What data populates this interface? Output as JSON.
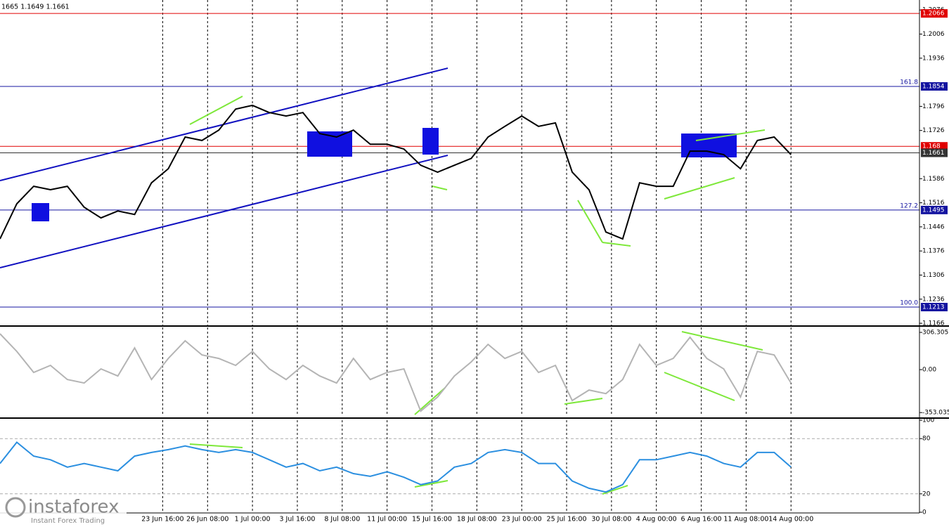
{
  "chart_data": {
    "type": "line",
    "header": "1665 1.1649 1.1661",
    "x": [
      0,
      6,
      12,
      18,
      24,
      30,
      36,
      42,
      48,
      54,
      60,
      66,
      72,
      78,
      84,
      90,
      96,
      102,
      108,
      114,
      120,
      126,
      132,
      138,
      144,
      150,
      156,
      162,
      168,
      174,
      180,
      186,
      192,
      198,
      204,
      210,
      216,
      222,
      228,
      234,
      240,
      246,
      252,
      258,
      264,
      270,
      276,
      282
    ],
    "xlim": [
      0,
      327.8
    ],
    "xticks": [
      {
        "value": 58,
        "label": "23 Jun 16:00"
      },
      {
        "value": 74,
        "label": "26 Jun 08:00"
      },
      {
        "value": 90,
        "label": "1 Jul 00:00"
      },
      {
        "value": 106,
        "label": "3 Jul 16:00"
      },
      {
        "value": 122,
        "label": "8 Jul 08:00"
      },
      {
        "value": 138,
        "label": "11 Jul 00:00"
      },
      {
        "value": 154,
        "label": "15 Jul 16:00"
      },
      {
        "value": 170,
        "label": "18 Jul 08:00"
      },
      {
        "value": 186,
        "label": "23 Jul 00:00"
      },
      {
        "value": 202,
        "label": "25 Jul 16:00"
      },
      {
        "value": 218,
        "label": "30 Jul 08:00"
      },
      {
        "value": 234,
        "label": "4 Aug 00:00"
      },
      {
        "value": 250,
        "label": "6 Aug 16:00"
      },
      {
        "value": 266,
        "label": "11 Aug 08:00"
      },
      {
        "value": 282,
        "label": "14 Aug 00:00"
      }
    ],
    "panels": [
      {
        "ylim": [
          1.116,
          1.2105
        ],
        "yticks": [
          1.2076,
          1.2006,
          1.1936,
          1.1796,
          1.1726,
          1.1586,
          1.1516,
          1.1446,
          1.1376,
          1.1306,
          1.1236,
          1.1166
        ],
        "levels": [
          {
            "value": 1.2066,
            "color": "#e00000"
          },
          {
            "value": 1.1854,
            "color": "#1414a0",
            "fib": "161.8"
          },
          {
            "value": 1.168,
            "color": "#e00000"
          },
          {
            "value": 1.1661,
            "color": "#333333"
          },
          {
            "value": 1.1495,
            "color": "#1414a0",
            "fib": "127.2"
          },
          {
            "value": 1.1213,
            "color": "#1414a0",
            "fib": "100.0"
          }
        ],
        "series": [
          {
            "color": "#000000",
            "values": [
              1.1411,
              1.1513,
              1.1564,
              1.1554,
              1.1564,
              1.1503,
              1.1472,
              1.1492,
              1.1482,
              1.1574,
              1.1615,
              1.1707,
              1.1697,
              1.1727,
              1.1788,
              1.1799,
              1.1778,
              1.1768,
              1.1778,
              1.1717,
              1.1707,
              1.1727,
              1.1686,
              1.1686,
              1.1672,
              1.1625,
              1.1605,
              1.1625,
              1.1645,
              1.1707,
              1.1738,
              1.1768,
              1.1738,
              1.1748,
              1.1605,
              1.1554,
              1.1431,
              1.1411,
              1.1574,
              1.1564,
              1.1564,
              1.1666,
              1.1666,
              1.1656,
              1.1615,
              1.1697,
              1.1707,
              1.1656
            ]
          }
        ]
      },
      {
        "ylim": [
          -381,
          347
        ],
        "yticks": [
          306.3051,
          {
            "value": 0,
            "label": "0.00"
          },
          {
            "value": -353.035,
            "label": "-353.0350"
          }
        ],
        "series": [
          {
            "color": "#b4b4b4",
            "values": [
              295,
              150,
              -23,
              35,
              -81,
              -110,
              6,
              -52,
              179,
              -81,
              92,
              237,
              121,
              92,
              35,
              150,
              6,
              -81,
              35,
              -52,
              -110,
              92,
              -81,
              -23,
              6,
              -341,
              -225,
              -52,
              64,
              208,
              92,
              150,
              -23,
              35,
              -254,
              -168,
              -197,
              -81,
              208,
              35,
              92,
              266,
              92,
              6,
              -225,
              150,
              121,
              -110
            ]
          }
        ]
      },
      {
        "ylim": [
          0,
          100
        ],
        "yticks": [
          100,
          80,
          20,
          0
        ],
        "dashed": [
          80,
          20
        ],
        "series": [
          {
            "color": "#2b8fe0",
            "values": [
              53,
              76,
              61,
              57,
              49,
              53,
              49,
              45,
              61,
              65,
              68,
              72,
              68,
              65,
              68,
              65,
              57,
              49,
              53,
              45,
              49,
              42,
              39,
              44,
              38,
              30,
              34,
              49,
              53,
              65,
              68,
              65,
              53,
              53,
              34,
              26,
              22,
              30,
              57,
              57,
              61,
              65,
              61,
              53,
              49,
              65,
              65,
              49
            ]
          }
        ]
      }
    ]
  },
  "watermark": {
    "brand": "instaforex",
    "tagline": "Instant Forex Trading"
  }
}
